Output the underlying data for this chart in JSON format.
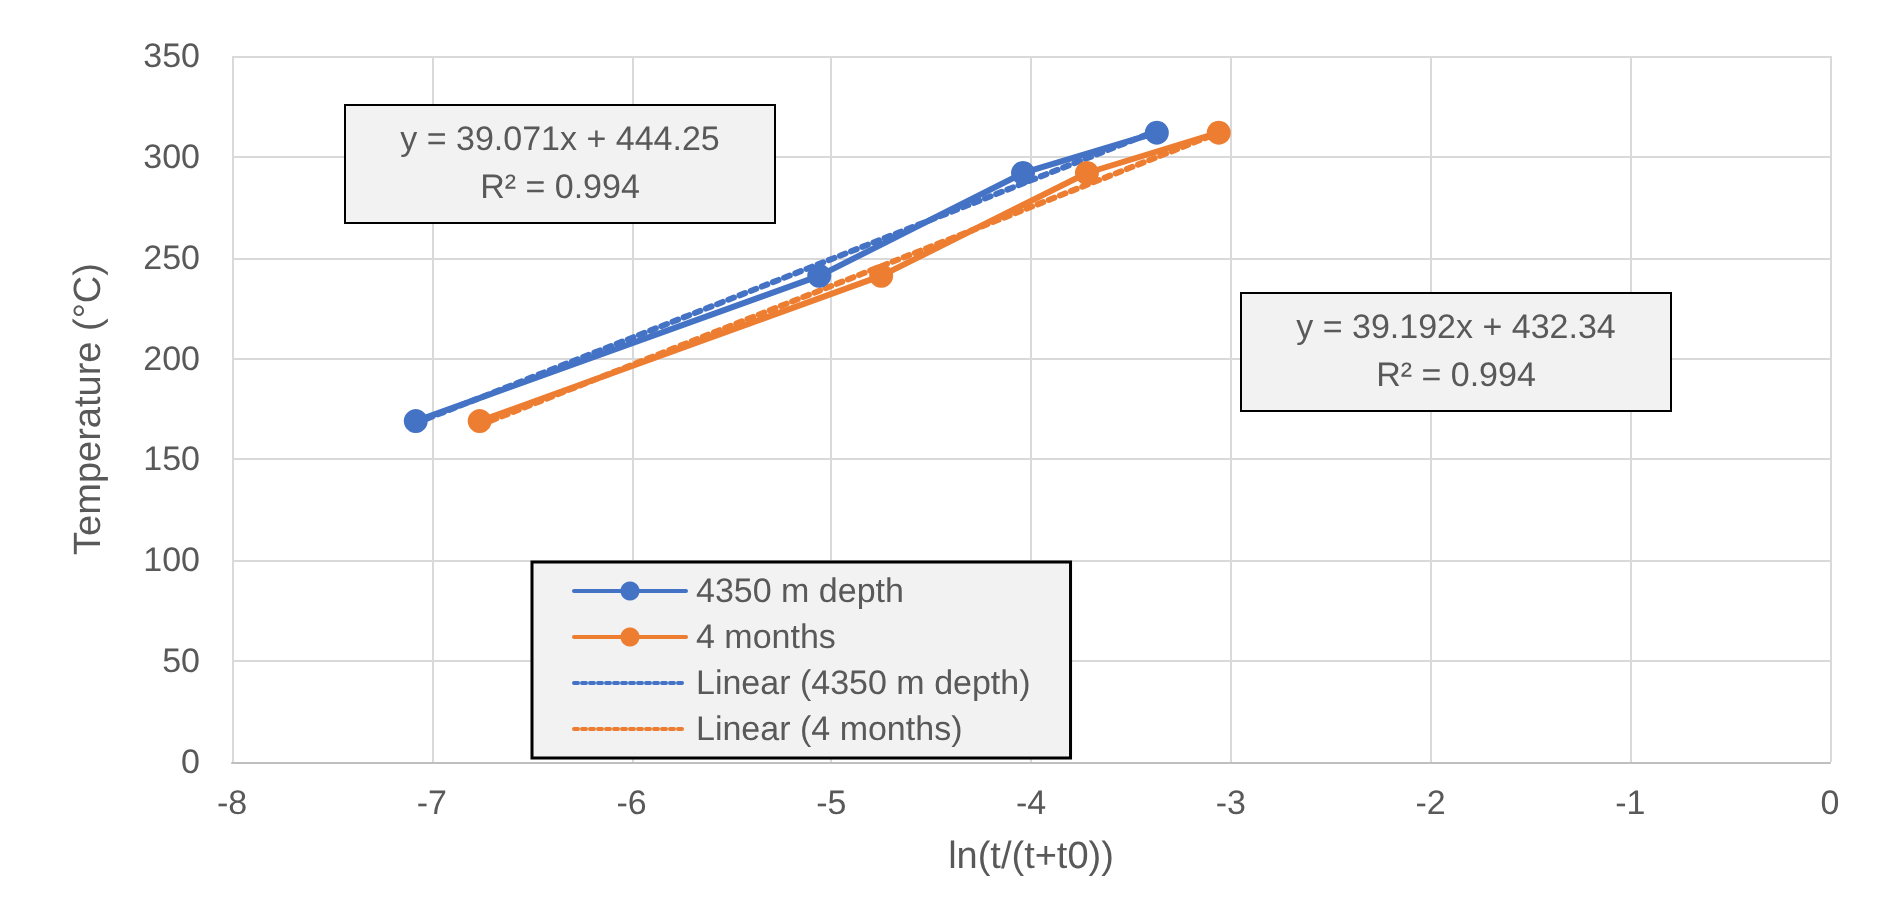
{
  "chart_data": {
    "type": "line",
    "xlabel": "ln(t/(t+t0))",
    "ylabel": "Temperature (°C)",
    "xlim": [
      -8,
      0
    ],
    "xticks": [
      -8,
      -7,
      -6,
      -5,
      -4,
      -3,
      -2,
      -1,
      0
    ],
    "ylim": [
      0,
      350
    ],
    "yticks": [
      0,
      50,
      100,
      150,
      200,
      250,
      300,
      350
    ],
    "grid": true,
    "legend": "bottom left",
    "series": [
      {
        "name": "4350 m depth",
        "color": "#4472c4",
        "marker": "circle",
        "line_style": "solid",
        "x": [
          -7.08,
          -5.06,
          -4.04,
          -3.37
        ],
        "values": [
          169,
          241,
          292,
          312
        ]
      },
      {
        "name": "4 months",
        "color": "#ed7d31",
        "marker": "circle",
        "line_style": "solid",
        "x": [
          -6.76,
          -4.75,
          -3.72,
          -3.06
        ],
        "values": [
          169,
          241,
          292,
          312
        ]
      },
      {
        "name": "Linear (4350 m depth)",
        "color": "#4472c4",
        "marker": "none",
        "line_style": "dotted",
        "x": [
          -7.08,
          -3.37
        ],
        "values": [
          168,
          313
        ]
      },
      {
        "name": "Linear (4 months)",
        "color": "#ed7d31",
        "marker": "none",
        "line_style": "dotted",
        "x": [
          -6.76,
          -3.06
        ],
        "values": [
          167,
          312
        ]
      }
    ],
    "annotations": [
      "y = 39.071x + 444.25\nR² = 0.994",
      "y = 39.192x + 432.34\nR² = 0.994"
    ]
  }
}
